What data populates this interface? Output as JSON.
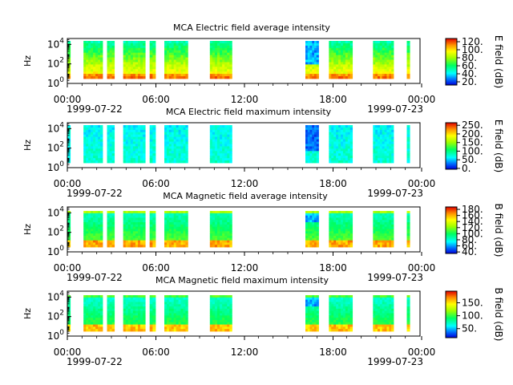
{
  "chart_data": [
    {
      "type": "heatmap",
      "title": "MCA  Electric field average intensity",
      "ylabel": "Hz",
      "y_scale": "log",
      "y_ticks": [
        {
          "base": "10",
          "exp": "0"
        },
        {
          "base": "10",
          "exp": "2"
        },
        {
          "base": "10",
          "exp": "4"
        }
      ],
      "ylim": [
        1,
        40000
      ],
      "x_ticks": [
        "00:00",
        "06:00",
        "12:00",
        "18:00",
        "00:00"
      ],
      "x_dates": [
        "1999-07-22",
        "1999-07-23"
      ],
      "xlim": [
        "1999-07-22 00:00",
        "1999-07-23 00:00"
      ],
      "colorbar_label": "E field (dB)",
      "colorbar_ticks": [
        "20.",
        "40.",
        "60.",
        "80.",
        "100.",
        "120."
      ],
      "colorbar_range": [
        12,
        128
      ],
      "profile": "e_avg"
    },
    {
      "type": "heatmap",
      "title": "MCA  Electric field maximum intensity",
      "ylabel": "Hz",
      "y_scale": "log",
      "y_ticks": [
        {
          "base": "10",
          "exp": "0"
        },
        {
          "base": "10",
          "exp": "2"
        },
        {
          "base": "10",
          "exp": "4"
        }
      ],
      "ylim": [
        1,
        40000
      ],
      "x_ticks": [
        "00:00",
        "06:00",
        "12:00",
        "18:00",
        "00:00"
      ],
      "x_dates": [
        "1999-07-22",
        "1999-07-23"
      ],
      "xlim": [
        "1999-07-22 00:00",
        "1999-07-23 00:00"
      ],
      "colorbar_label": "E field (dB)",
      "colorbar_ticks": [
        "0.",
        "50.",
        "100.",
        "150.",
        "200.",
        "250."
      ],
      "colorbar_range": [
        -5,
        265
      ],
      "profile": "e_max"
    },
    {
      "type": "heatmap",
      "title": "MCA  Magnetic field average intensity",
      "ylabel": "Hz",
      "y_scale": "log",
      "y_ticks": [
        {
          "base": "10",
          "exp": "0"
        },
        {
          "base": "10",
          "exp": "2"
        },
        {
          "base": "10",
          "exp": "4"
        }
      ],
      "ylim": [
        1,
        40000
      ],
      "x_ticks": [
        "00:00",
        "06:00",
        "12:00",
        "18:00",
        "00:00"
      ],
      "x_dates": [
        "1999-07-22",
        "1999-07-23"
      ],
      "xlim": [
        "1999-07-22 00:00",
        "1999-07-23 00:00"
      ],
      "colorbar_label": "B field (dB)",
      "colorbar_ticks": [
        "40.",
        "60.",
        "80.",
        "100.",
        "120.",
        "140.",
        "160.",
        "180."
      ],
      "colorbar_range": [
        35,
        188
      ],
      "profile": "b_avg"
    },
    {
      "type": "heatmap",
      "title": "MCA  Magnetic field maximum intensity",
      "ylabel": "Hz",
      "y_scale": "log",
      "y_ticks": [
        {
          "base": "10",
          "exp": "0"
        },
        {
          "base": "10",
          "exp": "2"
        },
        {
          "base": "10",
          "exp": "4"
        }
      ],
      "ylim": [
        1,
        40000
      ],
      "x_ticks": [
        "00:00",
        "06:00",
        "12:00",
        "18:00",
        "00:00"
      ],
      "x_dates": [
        "1999-07-22",
        "1999-07-23"
      ],
      "xlim": [
        "1999-07-22 00:00",
        "1999-07-23 00:00"
      ],
      "colorbar_label": "B field (dB)",
      "colorbar_ticks": [
        "50.",
        "100.",
        "150."
      ],
      "colorbar_range": [
        15,
        195
      ],
      "profile": "b_max"
    }
  ],
  "data_segments_hours": [
    [
      0.0,
      0.2
    ],
    [
      1.1,
      2.4
    ],
    [
      2.7,
      3.2
    ],
    [
      3.8,
      5.3
    ],
    [
      5.6,
      6.0
    ],
    [
      6.6,
      8.2
    ],
    [
      9.7,
      11.2
    ],
    [
      16.2,
      17.1
    ],
    [
      17.8,
      19.4
    ],
    [
      20.8,
      22.2
    ],
    [
      23.1,
      23.3
    ]
  ]
}
